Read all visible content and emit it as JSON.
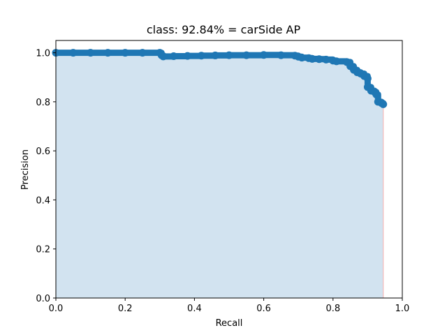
{
  "chart_data": {
    "type": "area",
    "title": "class: 92.84% = carSide AP",
    "xlabel": "Recall",
    "ylabel": "Precision",
    "xlim": [
      0.0,
      1.0
    ],
    "ylim": [
      0.0,
      1.05
    ],
    "xticks": [
      "0.0",
      "0.2",
      "0.4",
      "0.6",
      "0.8",
      "1.0"
    ],
    "yticks": [
      "0.0",
      "0.2",
      "0.4",
      "0.6",
      "0.8",
      "1.0"
    ],
    "grid": false,
    "colors": {
      "line": "#1f77b4",
      "fill": "#d2e3f0",
      "edge": "#f2b8b8"
    },
    "series": [
      {
        "x": [
          0.0,
          0.05,
          0.1,
          0.15,
          0.2,
          0.25,
          0.3,
          0.305,
          0.31,
          0.34,
          0.38,
          0.42,
          0.46,
          0.5,
          0.55,
          0.6,
          0.65,
          0.69,
          0.7,
          0.71,
          0.73,
          0.74,
          0.76,
          0.78,
          0.8,
          0.81,
          0.84,
          0.85,
          0.86,
          0.87,
          0.88,
          0.89,
          0.9,
          0.9,
          0.91,
          0.92,
          0.925,
          0.93,
          0.94,
          0.945
        ],
        "y": [
          1.0,
          1.0,
          1.0,
          1.0,
          1.0,
          1.0,
          1.0,
          0.99,
          0.985,
          0.986,
          0.987,
          0.988,
          0.989,
          0.99,
          0.99,
          0.991,
          0.99,
          0.988,
          0.984,
          0.98,
          0.978,
          0.975,
          0.974,
          0.972,
          0.968,
          0.965,
          0.962,
          0.945,
          0.93,
          0.92,
          0.915,
          0.905,
          0.895,
          0.86,
          0.845,
          0.84,
          0.83,
          0.8,
          0.795,
          0.79
        ]
      }
    ]
  }
}
